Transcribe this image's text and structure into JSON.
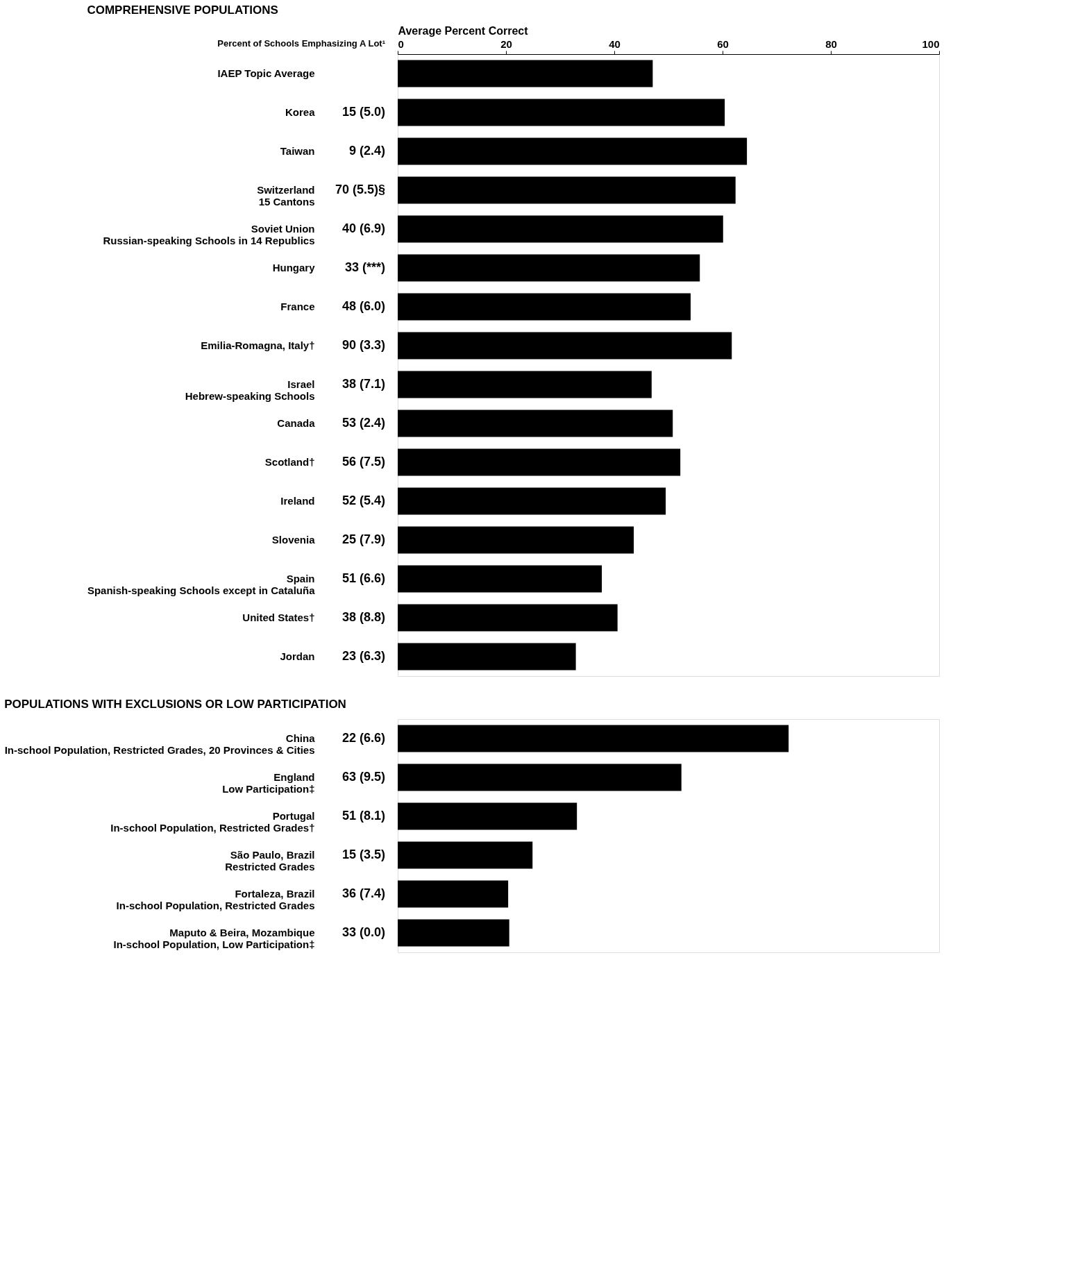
{
  "chart_data": [
    {
      "type": "bar",
      "orientation": "horizontal",
      "title": "COMPREHENSIVE POPULATIONS",
      "subtitle": "Percent of Schools Emphasizing A Lot¹",
      "xlabel": "Average Percent Correct",
      "xlim": [
        0,
        100
      ],
      "xticks": [
        0,
        20,
        40,
        60,
        80,
        100
      ],
      "grid": false,
      "color": "#000000",
      "categories": [
        "IAEP Topic Average",
        "Korea",
        "Taiwan",
        "Switzerland\n15 Cantons",
        "Soviet Union\nRussian-speaking Schools in 14 Republics",
        "Hungary",
        "France",
        "Emilia-Romagna, Italy†",
        "Israel\nHebrew-speaking Schools",
        "Canada",
        "Scotland†",
        "Ireland",
        "Slovenia",
        "Spain\nSpanish-speaking Schools except in Cataluña",
        "United States†",
        "Jordan"
      ],
      "values": [
        47.1,
        60.4,
        64.5,
        62.4,
        60.1,
        55.8,
        54.1,
        61.7,
        46.9,
        50.8,
        52.2,
        49.5,
        43.6,
        37.7,
        40.6,
        32.9
      ],
      "annotations": [
        "15 (5.0)",
        "9 (2.4)",
        "70 (5.5)§",
        "40 (6.9)",
        "33 (***)",
        "48 (6.0)",
        "90 (3.3)",
        "38 (7.1)",
        "53 (2.4)",
        "56 (7.5)",
        "52 (5.4)",
        "25 (7.9)",
        "51 (6.6)",
        "38 (8.8)",
        "23 (6.3)"
      ]
    },
    {
      "type": "bar",
      "orientation": "horizontal",
      "title": "POPULATIONS WITH EXCLUSIONS OR LOW PARTICIPATION",
      "xlim": [
        0,
        100
      ],
      "tick_labels": "y",
      "grid": false,
      "color": "#000000",
      "categories": [
        "China\nIn-school Population, Restricted Grades, 20 Provinces & Cities",
        "England\nLow Participation‡",
        "Portugal\nIn-school Population, Restricted Grades†",
        "São Paulo, Brazil\nRestricted Grades",
        "Fortaleza, Brazil\nIn-school Population, Restricted Grades",
        "Maputo & Beira, Mozambique\nIn-school Population, Low Participation‡"
      ],
      "values": [
        72.2,
        52.4,
        33.1,
        24.9,
        20.4,
        20.6
      ],
      "annotations": [
        "22 (6.6)",
        "63 (9.5)",
        "51 (8.1)",
        "15 (3.5)",
        "36 (7.4)",
        "33 (0.0)"
      ]
    }
  ]
}
